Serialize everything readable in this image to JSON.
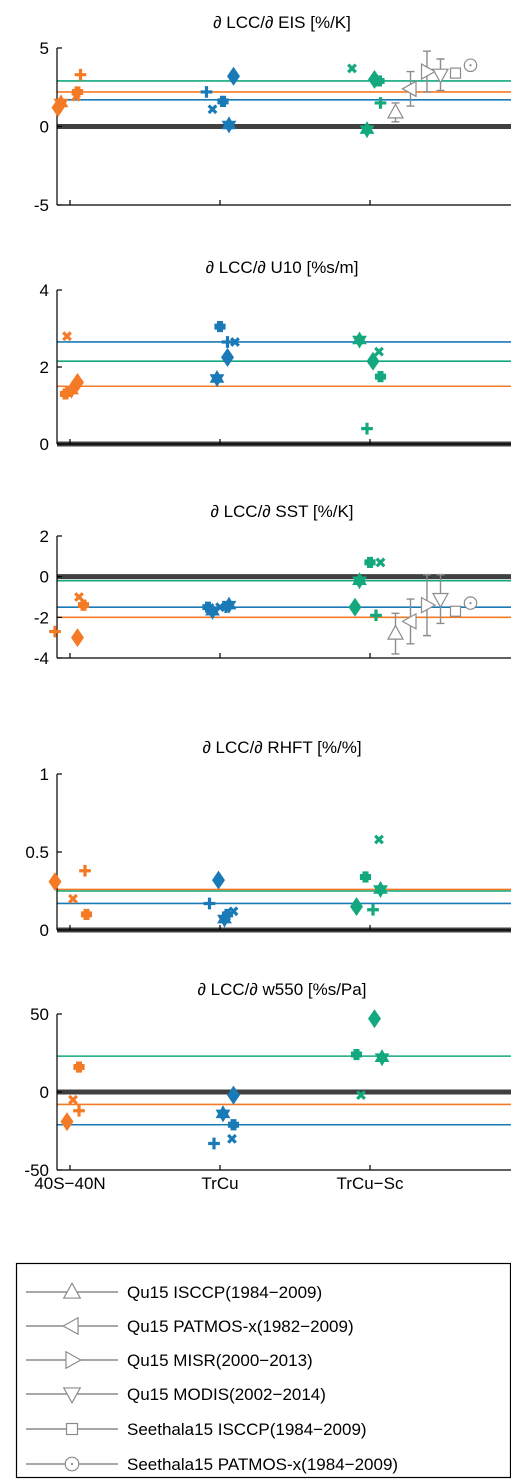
{
  "colors": {
    "orange": "#f47a25",
    "blue": "#1a7ab8",
    "green": "#14a87f",
    "gray": "#8c8c8c",
    "zero": "#404040"
  },
  "categories": [
    "40S−40N",
    "TrCu",
    "TrCu−Sc"
  ],
  "legend": [
    {
      "label": "Qu15 ISCCP(1984−2009)",
      "marker": "tri-up-icon"
    },
    {
      "label": "Qu15 PATMOS-x(1982−2009)",
      "marker": "tri-left-icon"
    },
    {
      "label": "Qu15 MISR(2000−2013)",
      "marker": "tri-right-icon"
    },
    {
      "label": "Qu15 MODIS(2002−2014)",
      "marker": "tri-down-icon"
    },
    {
      "label": "Seethala15 ISCCP(1984−2009)",
      "marker": "square-icon"
    },
    {
      "label": "Seethala15 PATMOS-x(1984−2009)",
      "marker": "circle-icon"
    }
  ],
  "chart_data": [
    {
      "type": "scatter",
      "title": "∂ LCC/∂ EIS [%/K]",
      "ylim": [
        -5,
        5
      ],
      "yticks": [
        "5",
        "0",
        "-5"
      ],
      "ytick_values": [
        5,
        0,
        -5
      ],
      "hlines": [
        {
          "color": "green",
          "y": 2.9
        },
        {
          "color": "orange",
          "y": 2.2
        },
        {
          "color": "blue",
          "y": 1.7
        }
      ],
      "points": [
        {
          "cat": 0,
          "dx": -0.08,
          "y": 1.2,
          "m": "diamond",
          "c": "orange"
        },
        {
          "cat": 0,
          "dx": -0.06,
          "y": 1.5,
          "m": "hexagram",
          "c": "orange"
        },
        {
          "cat": 0,
          "dx": 0.04,
          "y": 1.9,
          "m": "x",
          "c": "orange"
        },
        {
          "cat": 0,
          "dx": 0.05,
          "y": 2.2,
          "m": "plus-bold",
          "c": "orange"
        },
        {
          "cat": 0,
          "dx": 0.07,
          "y": 3.3,
          "m": "plus",
          "c": "orange"
        },
        {
          "cat": 1,
          "dx": -0.09,
          "y": 2.2,
          "m": "plus",
          "c": "blue"
        },
        {
          "cat": 1,
          "dx": -0.05,
          "y": 1.1,
          "m": "x",
          "c": "blue"
        },
        {
          "cat": 1,
          "dx": 0.02,
          "y": 1.6,
          "m": "plus-bold",
          "c": "blue"
        },
        {
          "cat": 1,
          "dx": 0.06,
          "y": 0.1,
          "m": "hexagram",
          "c": "blue"
        },
        {
          "cat": 1,
          "dx": 0.09,
          "y": 3.2,
          "m": "diamond",
          "c": "blue"
        },
        {
          "cat": 2,
          "dx": -0.12,
          "y": 3.7,
          "m": "x",
          "c": "green"
        },
        {
          "cat": 2,
          "dx": -0.02,
          "y": -0.2,
          "m": "hexagram",
          "c": "green"
        },
        {
          "cat": 2,
          "dx": 0.03,
          "y": 3.0,
          "m": "diamond",
          "c": "green"
        },
        {
          "cat": 2,
          "dx": 0.06,
          "y": 2.9,
          "m": "plus-bold",
          "c": "green"
        },
        {
          "cat": 2,
          "dx": 0.07,
          "y": 1.5,
          "m": "plus",
          "c": "green"
        }
      ],
      "obs": [
        {
          "m": "tri-up",
          "x": 2.17,
          "y": 0.9,
          "err": 0.6
        },
        {
          "m": "tri-left",
          "x": 2.27,
          "y": 2.4,
          "err": 1.1
        },
        {
          "m": "tri-right",
          "x": 2.38,
          "y": 3.5,
          "err": 1.3
        },
        {
          "m": "tri-down",
          "x": 2.47,
          "y": 3.3,
          "err": 1.0
        },
        {
          "m": "square",
          "x": 2.57,
          "y": 3.4,
          "err": 0
        },
        {
          "m": "circle",
          "x": 2.67,
          "y": 3.9,
          "err": 0
        }
      ]
    },
    {
      "type": "scatter",
      "title": "∂ LCC/∂ U10 [%s/m]",
      "ylim": [
        0,
        4
      ],
      "yticks": [
        "4",
        "2",
        "0"
      ],
      "ytick_values": [
        4,
        2,
        0
      ],
      "hlines": [
        {
          "color": "blue",
          "y": 2.65
        },
        {
          "color": "green",
          "y": 2.15
        },
        {
          "color": "orange",
          "y": 1.5
        }
      ],
      "points": [
        {
          "cat": 0,
          "dx": -0.03,
          "y": 1.3,
          "m": "plus-bold",
          "c": "orange"
        },
        {
          "cat": 0,
          "dx": -0.02,
          "y": 2.8,
          "m": "x",
          "c": "orange"
        },
        {
          "cat": 0,
          "dx": 0.01,
          "y": 1.4,
          "m": "hexagram",
          "c": "orange"
        },
        {
          "cat": 0,
          "dx": 0.05,
          "y": 1.6,
          "m": "diamond",
          "c": "orange"
        },
        {
          "cat": 1,
          "dx": -0.02,
          "y": 1.7,
          "m": "hexagram",
          "c": "blue"
        },
        {
          "cat": 1,
          "dx": 0.0,
          "y": 3.05,
          "m": "plus-bold",
          "c": "blue"
        },
        {
          "cat": 1,
          "dx": 0.05,
          "y": 2.65,
          "m": "plus",
          "c": "blue"
        },
        {
          "cat": 1,
          "dx": 0.05,
          "y": 2.25,
          "m": "diamond",
          "c": "blue"
        },
        {
          "cat": 1,
          "dx": 0.1,
          "y": 2.65,
          "m": "x",
          "c": "blue"
        },
        {
          "cat": 2,
          "dx": -0.07,
          "y": 2.7,
          "m": "hexagram",
          "c": "green"
        },
        {
          "cat": 2,
          "dx": -0.02,
          "y": 0.4,
          "m": "plus",
          "c": "green"
        },
        {
          "cat": 2,
          "dx": 0.02,
          "y": 2.15,
          "m": "diamond",
          "c": "green"
        },
        {
          "cat": 2,
          "dx": 0.06,
          "y": 2.4,
          "m": "x",
          "c": "green"
        },
        {
          "cat": 2,
          "dx": 0.07,
          "y": 1.75,
          "m": "plus-bold",
          "c": "green"
        }
      ],
      "obs": []
    },
    {
      "type": "scatter",
      "title": "∂ LCC/∂ SST [%/K]",
      "ylim": [
        -4,
        2
      ],
      "yticks": [
        "2",
        "0",
        "-2",
        "-4"
      ],
      "ytick_values": [
        2,
        0,
        -2,
        -4
      ],
      "hlines": [
        {
          "color": "green",
          "y": -0.2
        },
        {
          "color": "blue",
          "y": -1.5
        },
        {
          "color": "orange",
          "y": -2.0
        }
      ],
      "points": [
        {
          "cat": 0,
          "dx": -0.1,
          "y": -2.7,
          "m": "plus",
          "c": "orange"
        },
        {
          "cat": 0,
          "dx": 0.05,
          "y": -3.0,
          "m": "diamond",
          "c": "orange"
        },
        {
          "cat": 0,
          "dx": 0.06,
          "y": -1.0,
          "m": "x",
          "c": "orange"
        },
        {
          "cat": 0,
          "dx": 0.09,
          "y": -1.4,
          "m": "plus-bold",
          "c": "orange"
        },
        {
          "cat": 1,
          "dx": -0.08,
          "y": -1.5,
          "m": "plus-bold",
          "c": "blue"
        },
        {
          "cat": 1,
          "dx": -0.05,
          "y": -1.7,
          "m": "hexagram",
          "c": "blue"
        },
        {
          "cat": 1,
          "dx": 0.0,
          "y": -1.5,
          "m": "x",
          "c": "blue"
        },
        {
          "cat": 1,
          "dx": 0.04,
          "y": -1.5,
          "m": "plus",
          "c": "blue"
        },
        {
          "cat": 1,
          "dx": 0.06,
          "y": -1.4,
          "m": "hexagram",
          "c": "blue"
        },
        {
          "cat": 2,
          "dx": -0.1,
          "y": -1.5,
          "m": "diamond",
          "c": "green"
        },
        {
          "cat": 2,
          "dx": -0.07,
          "y": -0.2,
          "m": "hexagram",
          "c": "green"
        },
        {
          "cat": 2,
          "dx": 0.0,
          "y": 0.7,
          "m": "plus-bold",
          "c": "green"
        },
        {
          "cat": 2,
          "dx": 0.04,
          "y": -1.9,
          "m": "plus",
          "c": "green"
        },
        {
          "cat": 2,
          "dx": 0.07,
          "y": 0.7,
          "m": "x",
          "c": "green"
        }
      ],
      "obs": [
        {
          "m": "tri-up",
          "x": 2.17,
          "y": -2.8,
          "err": 1.0
        },
        {
          "m": "tri-left",
          "x": 2.27,
          "y": -2.2,
          "err": 1.1
        },
        {
          "m": "tri-right",
          "x": 2.38,
          "y": -1.4,
          "err": 1.5
        },
        {
          "m": "tri-down",
          "x": 2.47,
          "y": -1.1,
          "err": 1.2
        },
        {
          "m": "square",
          "x": 2.57,
          "y": -1.7,
          "err": 0
        },
        {
          "m": "circle",
          "x": 2.67,
          "y": -1.3,
          "err": 0
        }
      ]
    },
    {
      "type": "scatter",
      "title": "∂ LCC/∂ RHFT [%/%]",
      "ylim": [
        0,
        1
      ],
      "yticks": [
        "1",
        "0.5",
        "0"
      ],
      "ytick_values": [
        1,
        0.5,
        0
      ],
      "hlines": [
        {
          "color": "orange",
          "y": 0.26
        },
        {
          "color": "green",
          "y": 0.25
        },
        {
          "color": "blue",
          "y": 0.17
        }
      ],
      "points": [
        {
          "cat": 0,
          "dx": -0.1,
          "y": 0.31,
          "m": "diamond",
          "c": "orange"
        },
        {
          "cat": 0,
          "dx": 0.02,
          "y": 0.2,
          "m": "x",
          "c": "orange"
        },
        {
          "cat": 0,
          "dx": 0.1,
          "y": 0.38,
          "m": "plus",
          "c": "orange"
        },
        {
          "cat": 0,
          "dx": 0.11,
          "y": 0.1,
          "m": "plus-bold",
          "c": "orange"
        },
        {
          "cat": 1,
          "dx": -0.07,
          "y": 0.17,
          "m": "plus",
          "c": "blue"
        },
        {
          "cat": 1,
          "dx": -0.01,
          "y": 0.32,
          "m": "diamond",
          "c": "blue"
        },
        {
          "cat": 1,
          "dx": 0.03,
          "y": 0.07,
          "m": "hexagram",
          "c": "blue"
        },
        {
          "cat": 1,
          "dx": 0.05,
          "y": 0.1,
          "m": "plus-bold",
          "c": "blue"
        },
        {
          "cat": 1,
          "dx": 0.09,
          "y": 0.12,
          "m": "x",
          "c": "blue"
        },
        {
          "cat": 2,
          "dx": -0.09,
          "y": 0.15,
          "m": "diamond",
          "c": "green"
        },
        {
          "cat": 2,
          "dx": -0.03,
          "y": 0.34,
          "m": "plus-bold",
          "c": "green"
        },
        {
          "cat": 2,
          "dx": 0.02,
          "y": 0.13,
          "m": "plus",
          "c": "green"
        },
        {
          "cat": 2,
          "dx": 0.07,
          "y": 0.26,
          "m": "hexagram",
          "c": "green"
        },
        {
          "cat": 2,
          "dx": 0.06,
          "y": 0.58,
          "m": "x",
          "c": "green"
        }
      ],
      "obs": []
    },
    {
      "type": "scatter",
      "title": "∂ LCC/∂ w550 [%s/Pa]",
      "ylim": [
        -50,
        50
      ],
      "yticks": [
        "50",
        "0",
        "-50"
      ],
      "ytick_values": [
        50,
        0,
        -50
      ],
      "hlines": [
        {
          "color": "green",
          "y": 23
        },
        {
          "color": "orange",
          "y": -8
        },
        {
          "color": "blue",
          "y": -21
        }
      ],
      "points": [
        {
          "cat": 0,
          "dx": -0.02,
          "y": -19,
          "m": "diamond",
          "c": "orange"
        },
        {
          "cat": 0,
          "dx": 0.02,
          "y": -5,
          "m": "x",
          "c": "orange"
        },
        {
          "cat": 0,
          "dx": 0.06,
          "y": -12,
          "m": "plus",
          "c": "orange"
        },
        {
          "cat": 0,
          "dx": 0.06,
          "y": 16,
          "m": "plus-bold",
          "c": "orange"
        },
        {
          "cat": 1,
          "dx": -0.04,
          "y": -33,
          "m": "plus",
          "c": "blue"
        },
        {
          "cat": 1,
          "dx": 0.02,
          "y": -14,
          "m": "hexagram",
          "c": "blue"
        },
        {
          "cat": 1,
          "dx": 0.09,
          "y": -2,
          "m": "diamond",
          "c": "blue"
        },
        {
          "cat": 1,
          "dx": 0.09,
          "y": -21,
          "m": "plus-bold",
          "c": "blue"
        },
        {
          "cat": 1,
          "dx": 0.08,
          "y": -30,
          "m": "x",
          "c": "blue"
        },
        {
          "cat": 2,
          "dx": -0.09,
          "y": 24,
          "m": "plus-bold",
          "c": "green"
        },
        {
          "cat": 2,
          "dx": -0.06,
          "y": -2,
          "m": "x",
          "c": "green"
        },
        {
          "cat": 2,
          "dx": 0.03,
          "y": 47,
          "m": "diamond",
          "c": "green"
        },
        {
          "cat": 2,
          "dx": 0.08,
          "y": 22,
          "m": "hexagram",
          "c": "green"
        }
      ],
      "obs": []
    }
  ]
}
